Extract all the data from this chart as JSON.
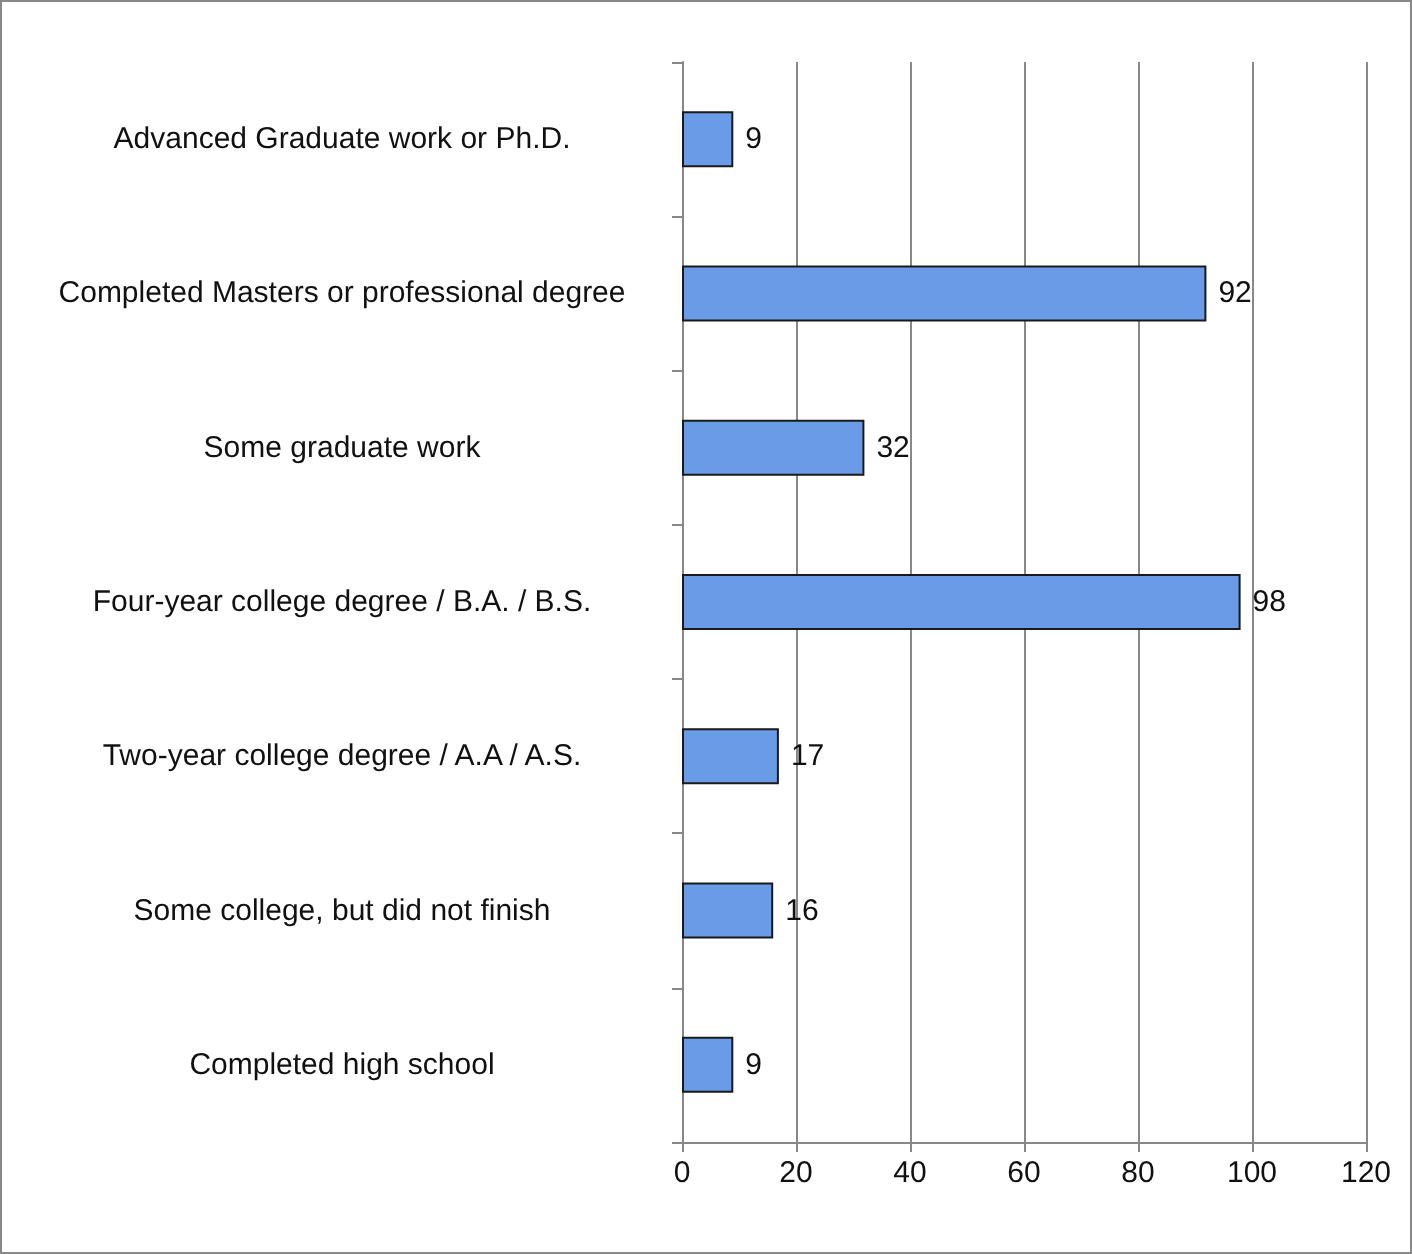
{
  "chart_data": {
    "type": "bar",
    "orientation": "horizontal",
    "categories": [
      "Advanced Graduate work or Ph.D.",
      "Completed Masters or professional degree",
      "Some graduate work",
      "Four-year college degree / B.A. / B.S.",
      "Two-year college degree / A.A / A.S.",
      "Some college, but did not finish",
      "Completed high school"
    ],
    "values": [
      9,
      92,
      32,
      98,
      17,
      16,
      9
    ],
    "color": "#6a9be6",
    "xlim": [
      0,
      120
    ],
    "xticks": [
      0,
      20,
      40,
      60,
      80,
      100,
      120
    ],
    "grid": "x",
    "data_labels": true
  }
}
